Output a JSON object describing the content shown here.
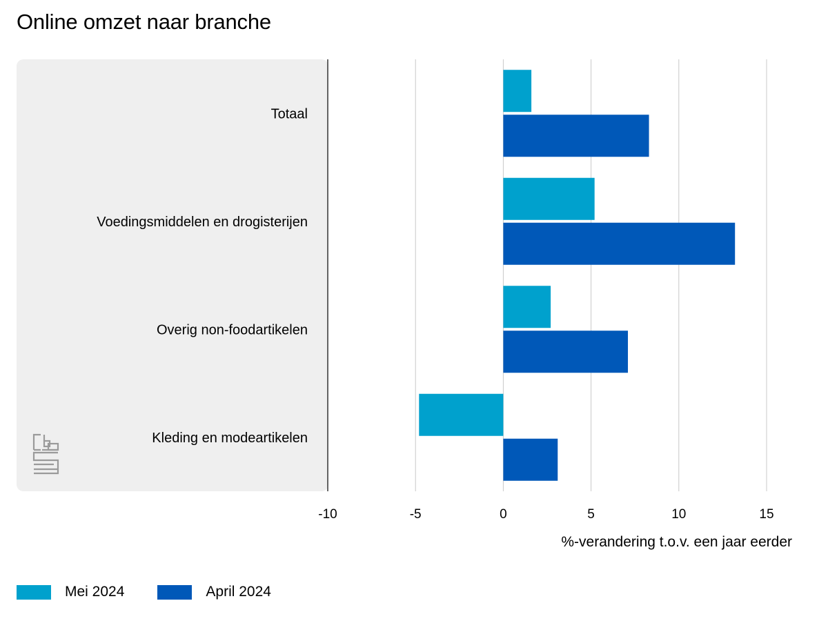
{
  "chart_data": {
    "type": "bar",
    "orientation": "horizontal",
    "title": "Online omzet naar branche",
    "categories": [
      "Totaal",
      "Voedingsmiddelen en drogisterijen",
      "Overig non-foodartikelen",
      "Kleding en modeartikelen"
    ],
    "series": [
      {
        "name": "Mei 2024",
        "color": "#00a1cd",
        "values": [
          1.6,
          5.2,
          2.7,
          -4.8
        ]
      },
      {
        "name": "April 2024",
        "color": "#0058b8",
        "values": [
          8.3,
          13.2,
          7.1,
          3.1
        ]
      }
    ],
    "xlabel": "%-verandering t.o.v. een jaar eerder",
    "ylabel": "",
    "xlim": [
      -10,
      15
    ],
    "xticks": [
      -10,
      -5,
      0,
      5,
      10,
      15
    ],
    "xtick_labels": [
      "-10",
      "-5",
      "0",
      "5",
      "10",
      "15"
    ],
    "grid": true,
    "legend_position": "bottom-left",
    "logo": "cbs-logo"
  }
}
